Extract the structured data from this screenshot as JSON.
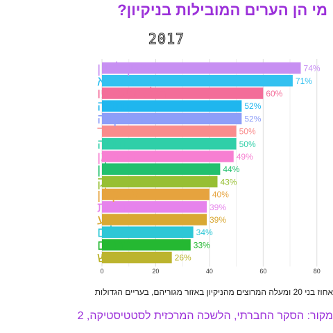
{
  "title": "מי הן הערים המובילות בניקיון?",
  "subtitle": "2017",
  "axis_note": "אחוז בני 20 ומעלה המרוצים מהניקיון באזור מגוריהם, בעריים הגדולות",
  "source": "מקור: הסקר החברתי, הלשכה המרכזית לסטטיסטיקה, ‏2",
  "chart_data": {
    "type": "bar",
    "orientation": "horizontal",
    "title": "מי הן הערים המובילות בניקיון?",
    "subtitle": "2017",
    "xlabel": "אחוז בני 20 ומעלה המרוצים מהניקיון באזור מגוריהם, בעריים הגדולות",
    "ylabel": "",
    "xlim": [
      0,
      86
    ],
    "xticks": [
      0,
      20,
      40,
      60,
      80
    ],
    "grid": true,
    "categories": [
      "ראשון לציון",
      "כפר סבא",
      "תל אביב-יפו",
      "נתניה",
      "פתח תקווה",
      "אשדוד",
      "חיפה",
      "רמת גן",
      "חולון",
      "בני ברק",
      "אשקלון",
      "רחובות",
      "באר שבע",
      "ירושלים",
      "בת ים",
      "בית שמש"
    ],
    "values": [
      74,
      71,
      60,
      52,
      52,
      50,
      50,
      49,
      44,
      43,
      40,
      39,
      39,
      34,
      33,
      26
    ],
    "value_labels": [
      "74%",
      "71%",
      "60%",
      "52%",
      "52%",
      "50%",
      "50%",
      "49%",
      "44%",
      "43%",
      "40%",
      "39%",
      "39%",
      "34%",
      "33%",
      "26%"
    ],
    "colors": [
      "#c78ff2",
      "#33c1f0",
      "#f36d99",
      "#1fb6ee",
      "#8d9ef8",
      "#f98c8c",
      "#2fcfa8",
      "#f77fd2",
      "#22c06e",
      "#97bf33",
      "#e6a33e",
      "#e683ec",
      "#d9a833",
      "#2ec7d6",
      "#25b832",
      "#bcb42e"
    ]
  }
}
